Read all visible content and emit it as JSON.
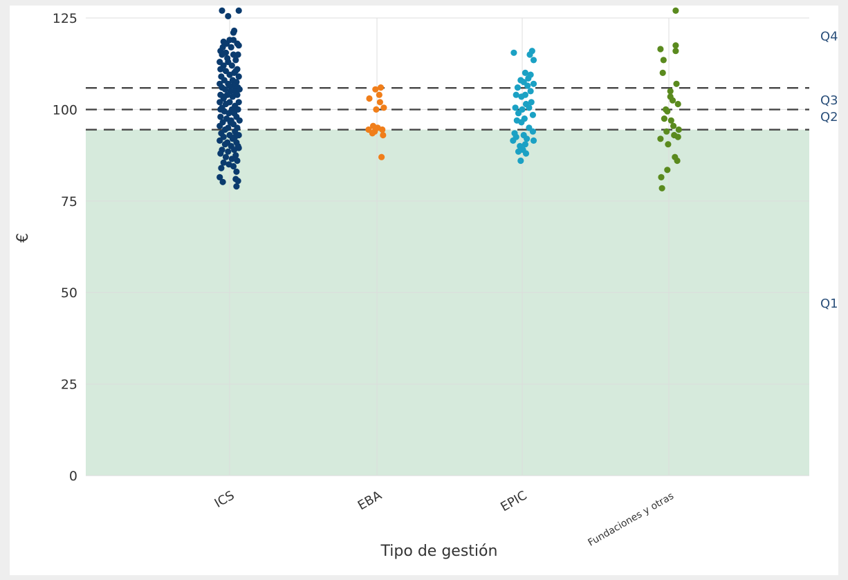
{
  "chart_data": {
    "type": "scatter",
    "title": "",
    "xlabel": "Tipo de gestión",
    "ylabel": "€",
    "ylim": [
      0,
      125
    ],
    "y_ticks": [
      0,
      25,
      50,
      75,
      100,
      125
    ],
    "categories": [
      "ICS",
      "EBA",
      "EPIC",
      "Fundaciones y otras"
    ],
    "grid": true,
    "shaded_region": {
      "y_from": 0,
      "y_to": 94.5,
      "color": "#d6eadc"
    },
    "quartile_lines": [
      {
        "label": "Q4",
        "value": 125.0,
        "line": false
      },
      {
        "label": "Q3",
        "value": 105.9,
        "line": true
      },
      {
        "label": "Q2",
        "value": 100.0,
        "line": true
      },
      {
        "label": "Q1",
        "value": 94.5,
        "line": true
      }
    ],
    "quartile_label_values": {
      "Q4": 120,
      "Q3": 102.5,
      "Q2": 98,
      "Q1": 47
    },
    "series": [
      {
        "name": "ICS",
        "color": "#0b3b6e",
        "points": [
          [
            -0.13,
            81.5
          ],
          [
            -0.09,
            80.2
          ],
          [
            0.09,
            83
          ],
          [
            0.08,
            81
          ],
          [
            0.09,
            79
          ],
          [
            0.11,
            80.5
          ],
          [
            -0.1,
            127
          ],
          [
            0.12,
            127
          ],
          [
            -0.02,
            125.5
          ],
          [
            0.06,
            121.5
          ],
          [
            0.05,
            121
          ],
          [
            -0.08,
            118.5
          ],
          [
            -0.04,
            118
          ],
          [
            0.0,
            119
          ],
          [
            0.1,
            118
          ],
          [
            -0.12,
            116
          ],
          [
            0.02,
            117
          ],
          [
            0.12,
            117.5
          ],
          [
            -0.1,
            115
          ],
          [
            -0.05,
            115.5
          ],
          [
            0.05,
            115
          ],
          [
            0.11,
            115
          ],
          [
            -0.13,
            113
          ],
          [
            -0.02,
            113
          ],
          [
            0.08,
            113.5
          ],
          [
            -0.08,
            112
          ],
          [
            0.03,
            112
          ],
          [
            -0.12,
            111
          ],
          [
            0.1,
            111
          ],
          [
            -0.05,
            110.5
          ],
          [
            0.06,
            110
          ],
          [
            -0.11,
            109
          ],
          [
            0.0,
            109.5
          ],
          [
            0.12,
            109
          ],
          [
            -0.07,
            108
          ],
          [
            0.04,
            108
          ],
          [
            -0.13,
            107
          ],
          [
            -0.02,
            107
          ],
          [
            0.09,
            107.5
          ],
          [
            0.05,
            106.5
          ],
          [
            -0.1,
            106
          ],
          [
            0.11,
            106
          ],
          [
            -0.06,
            105.5
          ],
          [
            0.01,
            105
          ],
          [
            0.07,
            105
          ],
          [
            -0.12,
            104
          ],
          [
            -0.03,
            104
          ],
          [
            0.1,
            104
          ],
          [
            -0.08,
            103
          ],
          [
            0.04,
            103.5
          ],
          [
            -0.13,
            102
          ],
          [
            0.0,
            102
          ],
          [
            0.12,
            102
          ],
          [
            -0.05,
            101.5
          ],
          [
            0.07,
            101
          ],
          [
            -0.1,
            100.5
          ],
          [
            0.03,
            100
          ],
          [
            0.11,
            100
          ],
          [
            -0.07,
            99.5
          ],
          [
            -0.01,
            99
          ],
          [
            0.06,
            99
          ],
          [
            -0.12,
            98
          ],
          [
            0.09,
            98
          ],
          [
            -0.04,
            97.5
          ],
          [
            0.02,
            97
          ],
          [
            0.13,
            97
          ],
          [
            -0.09,
            96.5
          ],
          [
            0.05,
            96
          ],
          [
            -0.13,
            95.5
          ],
          [
            -0.02,
            95
          ],
          [
            0.1,
            95
          ],
          [
            -0.06,
            94.5
          ],
          [
            0.07,
            94
          ],
          [
            -0.11,
            93.5
          ],
          [
            0.0,
            93
          ],
          [
            0.12,
            93
          ],
          [
            -0.08,
            92.5
          ],
          [
            0.04,
            92
          ],
          [
            -0.13,
            91.5
          ],
          [
            -0.03,
            91
          ],
          [
            0.09,
            91
          ],
          [
            -0.06,
            90.5
          ],
          [
            0.02,
            90
          ],
          [
            0.11,
            90
          ],
          [
            -0.1,
            89
          ],
          [
            0.06,
            89
          ],
          [
            -0.02,
            88.5
          ],
          [
            -0.12,
            88
          ],
          [
            0.08,
            87.5
          ],
          [
            -0.05,
            87
          ],
          [
            0.03,
            86.5
          ],
          [
            0.1,
            86
          ],
          [
            -0.08,
            85.5
          ],
          [
            -0.01,
            85
          ],
          [
            0.05,
            84.5
          ],
          [
            -0.11,
            84
          ],
          [
            0.12,
            89.5
          ],
          [
            -0.07,
            103.5
          ],
          [
            0.01,
            96.5
          ],
          [
            0.08,
            110.5
          ],
          [
            -0.03,
            114
          ],
          [
            0.13,
            105.5
          ],
          [
            -0.09,
            117
          ],
          [
            0.05,
            119
          ],
          [
            -0.12,
            100
          ],
          [
            0.0,
            106.5
          ],
          [
            0.07,
            92.5
          ]
        ]
      },
      {
        "name": "EBA",
        "color": "#f07e1a",
        "points": [
          [
            -0.1,
            103
          ],
          [
            0.03,
            104
          ],
          [
            0.05,
            106
          ],
          [
            -0.02,
            105.5
          ],
          [
            0.04,
            102
          ],
          [
            0.09,
            100.5
          ],
          [
            -0.01,
            100
          ],
          [
            -0.05,
            95.5
          ],
          [
            0.01,
            95
          ],
          [
            -0.11,
            94.5
          ],
          [
            -0.03,
            94
          ],
          [
            0.07,
            94.5
          ],
          [
            -0.06,
            93.5
          ],
          [
            0.08,
            93
          ],
          [
            0.06,
            87
          ]
        ]
      },
      {
        "name": "EPIC",
        "color": "#1ba1c4",
        "points": [
          [
            -0.11,
            115.5
          ],
          [
            0.13,
            116
          ],
          [
            0.1,
            115
          ],
          [
            0.15,
            113.5
          ],
          [
            0.04,
            110
          ],
          [
            0.11,
            109.5
          ],
          [
            0.08,
            108.5
          ],
          [
            -0.02,
            108
          ],
          [
            0.02,
            107.5
          ],
          [
            0.15,
            107
          ],
          [
            -0.06,
            106
          ],
          [
            0.07,
            106.5
          ],
          [
            0.11,
            105
          ],
          [
            -0.08,
            104
          ],
          [
            0.04,
            104
          ],
          [
            -0.01,
            103.5
          ],
          [
            0.12,
            102
          ],
          [
            0.05,
            101.5
          ],
          [
            -0.09,
            100.5
          ],
          [
            0.0,
            100
          ],
          [
            0.09,
            100.5
          ],
          [
            -0.05,
            99
          ],
          [
            0.14,
            98.5
          ],
          [
            0.03,
            97.5
          ],
          [
            -0.07,
            97
          ],
          [
            -0.01,
            96.5
          ],
          [
            0.09,
            95
          ],
          [
            -0.1,
            93.5
          ],
          [
            0.14,
            94
          ],
          [
            0.02,
            93
          ],
          [
            -0.08,
            92.5
          ],
          [
            0.06,
            92
          ],
          [
            -0.12,
            91.5
          ],
          [
            0.15,
            91.5
          ],
          [
            0.04,
            90.5
          ],
          [
            -0.03,
            90
          ],
          [
            0.01,
            89
          ],
          [
            -0.05,
            88.5
          ],
          [
            0.05,
            88
          ],
          [
            -0.02,
            86
          ]
        ]
      },
      {
        "name": "Fundaciones y otras",
        "color": "#5a8a1e",
        "points": [
          [
            0.09,
            127
          ],
          [
            -0.11,
            116.5
          ],
          [
            0.09,
            117.5
          ],
          [
            0.09,
            116
          ],
          [
            -0.07,
            113.5
          ],
          [
            -0.08,
            110
          ],
          [
            0.1,
            107
          ],
          [
            0.02,
            105
          ],
          [
            0.02,
            103.5
          ],
          [
            0.05,
            102.5
          ],
          [
            0.12,
            101.5
          ],
          [
            -0.04,
            100
          ],
          [
            -0.02,
            99.5
          ],
          [
            -0.06,
            97.5
          ],
          [
            0.03,
            97
          ],
          [
            0.06,
            95.5
          ],
          [
            -0.03,
            94
          ],
          [
            0.13,
            94.5
          ],
          [
            0.07,
            93
          ],
          [
            -0.11,
            92
          ],
          [
            0.12,
            92.5
          ],
          [
            -0.01,
            90.5
          ],
          [
            0.08,
            87
          ],
          [
            0.11,
            86
          ],
          [
            -0.02,
            83.5
          ],
          [
            -0.1,
            81.5
          ],
          [
            -0.09,
            78.5
          ]
        ]
      }
    ]
  }
}
